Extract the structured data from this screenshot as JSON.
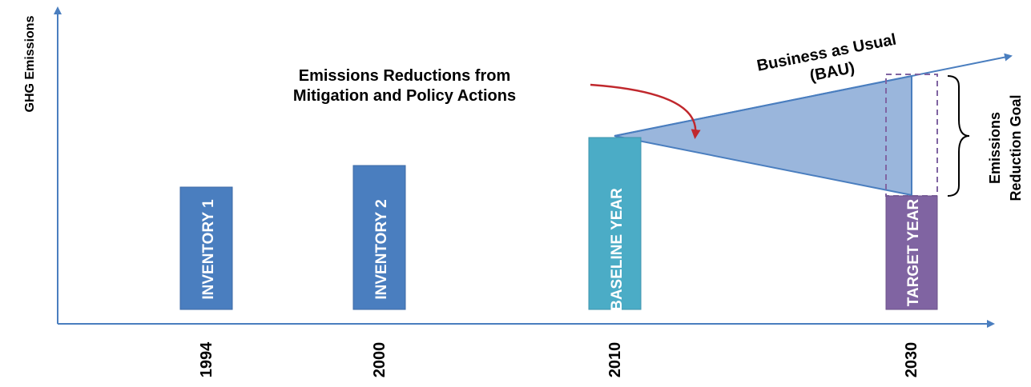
{
  "y_axis_label": "GHG Emissions",
  "years": [
    "1994",
    "2000",
    "2010",
    "2030"
  ],
  "bars": [
    {
      "label": "INVENTORY 1",
      "year": "1994",
      "color": "#4a7ebf"
    },
    {
      "label": "INVENTORY 2",
      "year": "2000",
      "color": "#4a7ebf"
    },
    {
      "label": "BASELINE YEAR",
      "year": "2010",
      "color": "#4bacc6"
    },
    {
      "label": "TARGET YEAR",
      "year": "2030",
      "color": "#8064a2"
    }
  ],
  "annotation": {
    "line1": "Emissions Reductions from",
    "line2": "Mitigation and Policy Actions"
  },
  "bau": {
    "line1": "Business as Usual",
    "line2": "(BAU)"
  },
  "reduction_goal": {
    "line1": "Emissions",
    "line2": "Reduction Goal"
  },
  "colors": {
    "axis": "#4a7ebf",
    "wedge_fill": "#9ab6dc",
    "wedge_stroke": "#4a7ebf",
    "arrow": "#c0282d",
    "dashed": "#8064a2"
  }
}
